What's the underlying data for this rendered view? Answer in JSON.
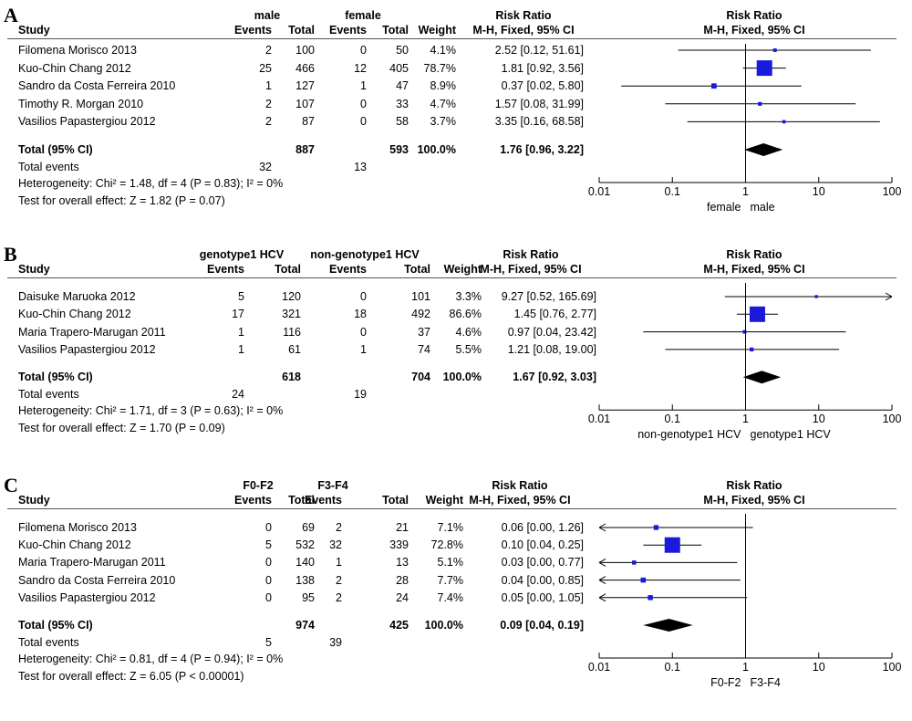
{
  "chart_data": [
    {
      "type": "forest",
      "panel": "A",
      "group1": "male",
      "group2": "female",
      "columns": {
        "study": "Study",
        "events": "Events",
        "total": "Total",
        "weight": "Weight",
        "rr_title": "Risk Ratio",
        "rr_method": "M-H, Fixed, 95% CI"
      },
      "studies": [
        {
          "name": "Filomena Morisco 2013",
          "e1": "2",
          "n1": "100",
          "e2": "0",
          "n2": "50",
          "weight": "4.1%",
          "ci": "2.52 [0.12, 51.61]",
          "rr": 2.52,
          "lo": 0.12,
          "hi": 51.61
        },
        {
          "name": "Kuo-Chin Chang  2012",
          "e1": "25",
          "n1": "466",
          "e2": "12",
          "n2": "405",
          "weight": "78.7%",
          "ci": "1.81 [0.92, 3.56]",
          "rr": 1.81,
          "lo": 0.92,
          "hi": 3.56
        },
        {
          "name": "Sandro da Costa Ferreira  2010",
          "e1": "1",
          "n1": "127",
          "e2": "1",
          "n2": "47",
          "weight": "8.9%",
          "ci": "0.37 [0.02, 5.80]",
          "rr": 0.37,
          "lo": 0.02,
          "hi": 5.8
        },
        {
          "name": "Timothy R. Morgan  2010",
          "e1": "2",
          "n1": "107",
          "e2": "0",
          "n2": "33",
          "weight": "4.7%",
          "ci": "1.57 [0.08, 31.99]",
          "rr": 1.57,
          "lo": 0.08,
          "hi": 31.99
        },
        {
          "name": "Vasilios Papastergiou 2012",
          "e1": "2",
          "n1": "87",
          "e2": "0",
          "n2": "58",
          "weight": "3.7%",
          "ci": "3.35 [0.16, 68.58]",
          "rr": 3.35,
          "lo": 0.16,
          "hi": 68.58
        }
      ],
      "total": {
        "label": "Total (95% CI)",
        "n1": "887",
        "n2": "593",
        "weight": "100.0%",
        "ci": "1.76 [0.96, 3.22]",
        "rr": 1.76,
        "lo": 0.96,
        "hi": 3.22
      },
      "total_events": {
        "label": "Total events",
        "e1": "32",
        "e2": "13"
      },
      "heterogeneity": "Heterogeneity: Chi² = 1.48, df = 4 (P = 0.83); I² = 0%",
      "overall_effect": "Test for overall effect: Z = 1.82 (P = 0.07)",
      "xaxis": {
        "scale": "log",
        "ticks": [
          0.01,
          0.1,
          1,
          10,
          100
        ],
        "tick_labels": [
          "0.01",
          "0.1",
          "1",
          "10",
          "100"
        ]
      },
      "favours_left": "female",
      "favours_right": "male"
    },
    {
      "type": "forest",
      "panel": "B",
      "group1": "genotype1 HCV",
      "group2": "non-genotype1 HCV",
      "columns": {
        "study": "Study",
        "events": "Events",
        "total": "Total",
        "weight": "Weight",
        "rr_title": "Risk Ratio",
        "rr_method": "M-H, Fixed, 95% CI"
      },
      "studies": [
        {
          "name": "Daisuke Maruoka 2012",
          "e1": "5",
          "n1": "120",
          "e2": "0",
          "n2": "101",
          "weight": "3.3%",
          "ci": "9.27 [0.52, 165.69]",
          "rr": 9.27,
          "lo": 0.52,
          "hi": 165.69
        },
        {
          "name": "Kuo-Chin Chang  2012",
          "e1": "17",
          "n1": "321",
          "e2": "18",
          "n2": "492",
          "weight": "86.6%",
          "ci": "1.45 [0.76, 2.77]",
          "rr": 1.45,
          "lo": 0.76,
          "hi": 2.77
        },
        {
          "name": "Maria Trapero-Marugan  2011",
          "e1": "1",
          "n1": "116",
          "e2": "0",
          "n2": "37",
          "weight": "4.6%",
          "ci": "0.97 [0.04, 23.42]",
          "rr": 0.97,
          "lo": 0.04,
          "hi": 23.42
        },
        {
          "name": "Vasilios Papastergiou 2012",
          "e1": "1",
          "n1": "61",
          "e2": "1",
          "n2": "74",
          "weight": "5.5%",
          "ci": "1.21 [0.08, 19.00]",
          "rr": 1.21,
          "lo": 0.08,
          "hi": 19.0
        }
      ],
      "total": {
        "label": "Total (95% CI)",
        "n1": "618",
        "n2": "704",
        "weight": "100.0%",
        "ci": "1.67 [0.92, 3.03]",
        "rr": 1.67,
        "lo": 0.92,
        "hi": 3.03
      },
      "total_events": {
        "label": "Total events",
        "e1": "24",
        "e2": "19"
      },
      "heterogeneity": "Heterogeneity: Chi² = 1.71, df = 3 (P = 0.63); I² = 0%",
      "overall_effect": "Test for overall effect: Z = 1.70 (P = 0.09)",
      "xaxis": {
        "scale": "log",
        "ticks": [
          0.01,
          0.1,
          1,
          10,
          100
        ],
        "tick_labels": [
          "0.01",
          "0.1",
          "1",
          "10",
          "100"
        ]
      },
      "favours_left": "non-genotype1 HCV",
      "favours_right": "genotype1 HCV"
    },
    {
      "type": "forest",
      "panel": "C",
      "group1": "F0-F2",
      "group2": "F3-F4",
      "columns": {
        "study": "Study",
        "events": "Events",
        "total": "Total",
        "weight": "Weight",
        "rr_title": "Risk Ratio",
        "rr_method": "M-H, Fixed, 95% CI"
      },
      "studies": [
        {
          "name": "Filomena Morisco 2013",
          "e1": "0",
          "n1": "69",
          "e2": "2",
          "n2": "21",
          "weight": "7.1%",
          "ci": "0.06 [0.00, 1.26]",
          "rr": 0.06,
          "lo": 0.0,
          "hi": 1.26
        },
        {
          "name": "Kuo-Chin Chang  2012",
          "e1": "5",
          "n1": "532",
          "e2": "32",
          "n2": "339",
          "weight": "72.8%",
          "ci": "0.10 [0.04, 0.25]",
          "rr": 0.1,
          "lo": 0.04,
          "hi": 0.25
        },
        {
          "name": "Maria Trapero-Marugan  2011",
          "e1": "0",
          "n1": "140",
          "e2": "1",
          "n2": "13",
          "weight": "5.1%",
          "ci": "0.03 [0.00, 0.77]",
          "rr": 0.03,
          "lo": 0.0,
          "hi": 0.77
        },
        {
          "name": "Sandro da Costa Ferreira  2010",
          "e1": "0",
          "n1": "138",
          "e2": "2",
          "n2": "28",
          "weight": "7.7%",
          "ci": "0.04 [0.00, 0.85]",
          "rr": 0.04,
          "lo": 0.0,
          "hi": 0.85
        },
        {
          "name": "Vasilios Papastergiou 2012",
          "e1": "0",
          "n1": "95",
          "e2": "2",
          "n2": "24",
          "weight": "7.4%",
          "ci": "0.05 [0.00, 1.05]",
          "rr": 0.05,
          "lo": 0.0,
          "hi": 1.05
        }
      ],
      "total": {
        "label": "Total (95% CI)",
        "n1": "974",
        "n2": "425",
        "weight": "100.0%",
        "ci": "0.09 [0.04, 0.19]",
        "rr": 0.09,
        "lo": 0.04,
        "hi": 0.19
      },
      "total_events": {
        "label": "Total events",
        "e1": "5",
        "e2": "39"
      },
      "heterogeneity": "Heterogeneity: Chi² = 0.81, df = 4 (P = 0.94); I² = 0%",
      "overall_effect": "Test for overall effect: Z = 6.05 (P < 0.00001)",
      "xaxis": {
        "scale": "log",
        "ticks": [
          0.01,
          0.1,
          1,
          10,
          100
        ],
        "tick_labels": [
          "0.01",
          "0.1",
          "1",
          "10",
          "100"
        ]
      },
      "favours_left": "F0-F2",
      "favours_right": "F3-F4"
    }
  ]
}
